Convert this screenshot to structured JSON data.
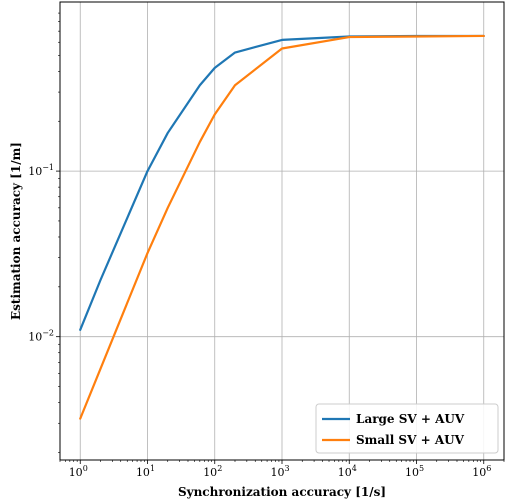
{
  "chart_data": {
    "type": "line",
    "title": "",
    "xlabel": "Synchronization accuracy [1/s]",
    "ylabel": "Estimation accuracy [1/m]",
    "xscale": "log",
    "yscale": "log",
    "xlim": [
      0.5,
      2000000
    ],
    "ylim": [
      0.0018,
      1.05
    ],
    "grid": true,
    "legend_position": "lower-right",
    "x_ticks": [
      {
        "value": 1,
        "label_base": "10",
        "label_exp": "0"
      },
      {
        "value": 10,
        "label_base": "10",
        "label_exp": "1"
      },
      {
        "value": 100,
        "label_base": "10",
        "label_exp": "2"
      },
      {
        "value": 1000,
        "label_base": "10",
        "label_exp": "3"
      },
      {
        "value": 10000,
        "label_base": "10",
        "label_exp": "4"
      },
      {
        "value": 100000,
        "label_base": "10",
        "label_exp": "5"
      },
      {
        "value": 1000000,
        "label_base": "10",
        "label_exp": "6"
      }
    ],
    "y_ticks": [
      {
        "value": 0.01,
        "label_base": "10",
        "label_exp": "−2"
      },
      {
        "value": 0.1,
        "label_base": "10",
        "label_exp": "−1"
      }
    ],
    "series": [
      {
        "name": "Large SV + AUV",
        "color": "#1f77b4",
        "x": [
          1,
          2,
          10,
          20,
          60,
          100,
          200,
          1000,
          10000,
          100000,
          1000000
        ],
        "y": [
          0.011,
          0.022,
          0.1,
          0.17,
          0.33,
          0.42,
          0.52,
          0.62,
          0.65,
          0.655,
          0.655
        ]
      },
      {
        "name": "Small SV + AUV",
        "color": "#ff7f0e",
        "x": [
          1,
          10,
          20,
          60,
          100,
          200,
          1000,
          10000,
          100000,
          1000000
        ],
        "y": [
          0.0032,
          0.032,
          0.06,
          0.15,
          0.22,
          0.33,
          0.55,
          0.645,
          0.65,
          0.655
        ]
      }
    ]
  }
}
